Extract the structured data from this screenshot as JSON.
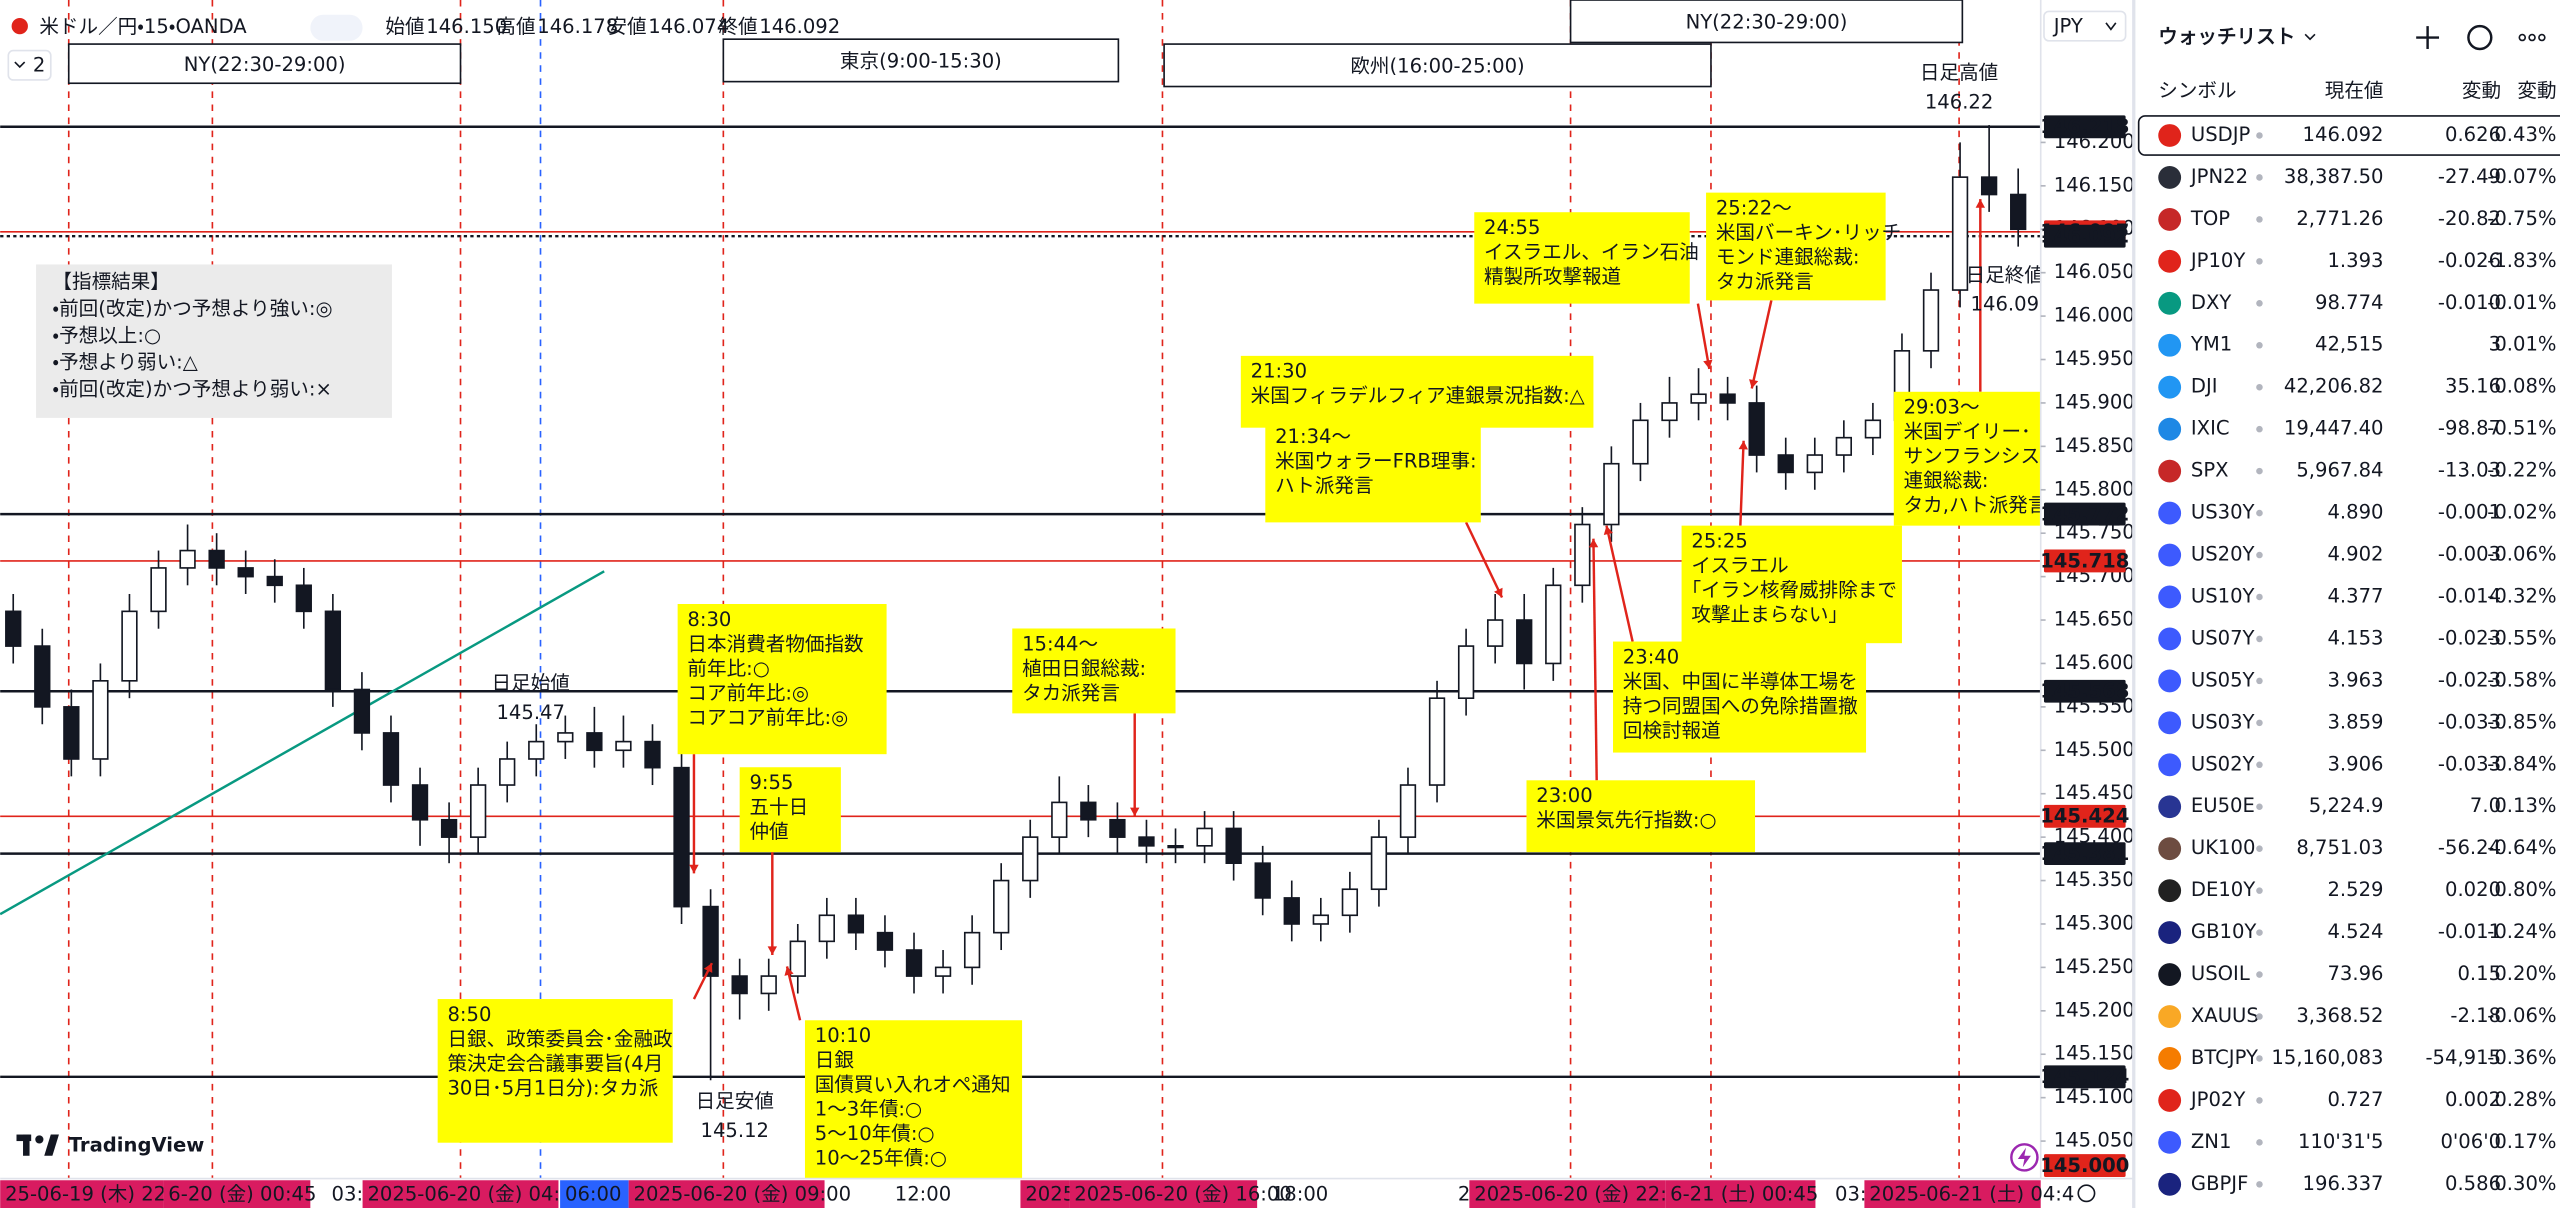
{
  "header": {
    "layout_count": "2",
    "symbol": "米ドル／円・15・OANDA",
    "ohlc": [
      {
        "label": "始値",
        "value": "146.150"
      },
      {
        "label": "高値",
        "value": "146.178"
      },
      {
        "label": "安値",
        "value": "146.074"
      },
      {
        "label": "終値",
        "value": "146.092"
      }
    ]
  },
  "sessions": [
    "NY(22:30-29:00)",
    "東京(9:00-15:30)",
    "欧州(16:00-25:00)",
    "NY(22:30-29:00)"
  ],
  "legend_box": {
    "lines": [
      "【指標結果】",
      "・前回(改定)かつ予想より強い:◎",
      "・予想以上:○",
      "・予想より弱い:△",
      "・前回(改定)かつ予想より弱い:×"
    ]
  },
  "annotations": [
    {
      "color": "#111111",
      "lines": [
        "8:30",
        "日本消費者物価指数",
        "前年比:○",
        "コア前年比:◎",
        "コアコア前年比:◎"
      ]
    },
    {
      "color": "#111111",
      "lines": [
        "9:55",
        "五十日",
        "仲値"
      ]
    },
    {
      "color": "#111111",
      "lines": [
        "8:50",
        "日銀、政策委員会･金融政",
        "策決定会合議事要旨(4月",
        "30日･5月1日分):タカ派"
      ]
    },
    {
      "color": "#111111",
      "lines": [
        "10:10",
        "日銀",
        "国債買い入れオペ通知",
        "1～3年債:○",
        "5～10年債:○",
        "10～25年債:○"
      ]
    },
    {
      "color": "#e0241b",
      "lines": [
        "15:44～",
        "植田日銀総裁:",
        "タカ派発言"
      ]
    },
    {
      "color": "#111111",
      "lines": [
        "21:30",
        "米国フィラデルフィア連銀景況指数:△"
      ]
    },
    {
      "color": "#e0241b",
      "lines": [
        "21:34～",
        "米国ウォラーFRB理事:",
        "ハト派発言"
      ]
    },
    {
      "color": "#e0241b",
      "lines": [
        "24:55",
        "イスラエル、イラン石油",
        "精製所攻撃報道"
      ]
    },
    {
      "color": "#111111",
      "lines": [
        "25:22～",
        "米国バーキン･リッチ",
        "モンド連銀総裁:",
        "タカ派発言"
      ]
    },
    {
      "color": "#111111",
      "lines": [
        "29:03～",
        "米国デイリー･",
        "サンフランシスコ",
        "連銀総裁:",
        "タカ,ハト派発言"
      ]
    },
    {
      "color": "#e0241b",
      "lines": [
        "25:25",
        "イスラエル",
        "｢イラン核脅威排除まで",
        "攻撃止まらない｣"
      ]
    },
    {
      "color": "#e0241b",
      "lines": [
        "23:40",
        "米国、中国に半導体工場を",
        "持つ同盟国への免除措置撤",
        "回検討報道"
      ]
    },
    {
      "color": "#111111",
      "lines": [
        "23:00",
        "米国景気先行指数:○"
      ]
    }
  ],
  "daily_marks": [
    {
      "label": "日足高値",
      "price": "146.22"
    },
    {
      "label": "日足終値",
      "price": "146.09"
    },
    {
      "label": "日足始値",
      "price": "145.47"
    },
    {
      "label": "日足安値",
      "price": "145.12"
    }
  ],
  "chart_data": {
    "type": "candlestick",
    "currency": "JPY",
    "up_color": "#ffffff",
    "down_color": "#131722",
    "open": [
      145.66,
      145.62,
      145.55,
      145.49,
      145.58,
      145.66,
      145.71,
      145.73,
      145.71,
      145.7,
      145.69,
      145.66,
      145.57,
      145.52,
      145.46,
      145.42,
      145.4,
      145.46,
      145.49,
      145.51,
      145.52,
      145.5,
      145.51,
      145.48,
      145.32,
      145.24,
      145.22,
      145.24,
      145.28,
      145.31,
      145.29,
      145.27,
      145.24,
      145.25,
      145.29,
      145.35,
      145.4,
      145.44,
      145.42,
      145.4,
      145.39,
      145.39,
      145.41,
      145.37,
      145.33,
      145.3,
      145.31,
      145.34,
      145.4,
      145.46,
      145.56,
      145.62,
      145.65,
      145.6,
      145.69,
      145.76,
      145.83,
      145.88,
      145.9,
      145.91,
      145.9,
      145.84,
      145.82,
      145.84,
      145.86,
      145.88,
      145.96,
      146.03,
      146.16,
      146.14
    ],
    "high": [
      145.68,
      145.64,
      145.57,
      145.6,
      145.68,
      145.73,
      145.76,
      145.75,
      145.73,
      145.72,
      145.71,
      145.68,
      145.59,
      145.54,
      145.48,
      145.44,
      145.48,
      145.51,
      145.53,
      145.54,
      145.55,
      145.54,
      145.53,
      145.5,
      145.34,
      145.26,
      145.26,
      145.3,
      145.33,
      145.33,
      145.31,
      145.29,
      145.27,
      145.31,
      145.37,
      145.42,
      145.47,
      145.46,
      145.44,
      145.42,
      145.41,
      145.43,
      145.43,
      145.39,
      145.35,
      145.33,
      145.36,
      145.42,
      145.48,
      145.58,
      145.64,
      145.68,
      145.68,
      145.71,
      145.78,
      145.85,
      145.9,
      145.93,
      145.94,
      145.93,
      145.92,
      145.86,
      145.86,
      145.88,
      145.9,
      145.98,
      146.05,
      146.2,
      146.22,
      146.17
    ],
    "low": [
      145.6,
      145.53,
      145.47,
      145.47,
      145.56,
      145.64,
      145.69,
      145.69,
      145.68,
      145.67,
      145.64,
      145.55,
      145.5,
      145.44,
      145.39,
      145.37,
      145.38,
      145.44,
      145.47,
      145.49,
      145.48,
      145.48,
      145.46,
      145.3,
      145.12,
      145.19,
      145.2,
      145.22,
      145.26,
      145.27,
      145.25,
      145.22,
      145.22,
      145.23,
      145.27,
      145.33,
      145.38,
      145.4,
      145.38,
      145.37,
      145.37,
      145.37,
      145.35,
      145.31,
      145.28,
      145.28,
      145.29,
      145.32,
      145.38,
      145.44,
      145.54,
      145.6,
      145.57,
      145.58,
      145.67,
      145.74,
      145.81,
      145.86,
      145.88,
      145.88,
      145.82,
      145.8,
      145.8,
      145.82,
      145.84,
      145.86,
      145.94,
      146.01,
      146.12,
      146.08
    ],
    "close": [
      145.62,
      145.55,
      145.49,
      145.58,
      145.66,
      145.71,
      145.73,
      145.71,
      145.7,
      145.69,
      145.66,
      145.57,
      145.52,
      145.46,
      145.42,
      145.4,
      145.46,
      145.49,
      145.51,
      145.52,
      145.5,
      145.51,
      145.48,
      145.32,
      145.24,
      145.22,
      145.24,
      145.28,
      145.31,
      145.29,
      145.27,
      145.24,
      145.25,
      145.29,
      145.35,
      145.4,
      145.44,
      145.42,
      145.4,
      145.39,
      145.39,
      145.41,
      145.37,
      145.33,
      145.3,
      145.31,
      145.34,
      145.4,
      145.46,
      145.56,
      145.62,
      145.65,
      145.6,
      145.69,
      145.76,
      145.83,
      145.88,
      145.9,
      145.91,
      145.9,
      145.84,
      145.82,
      145.84,
      145.86,
      145.88,
      145.96,
      146.03,
      146.16,
      146.14,
      146.1
    ],
    "ylim": [
      145.0,
      146.364
    ],
    "yticks": [
      {
        "value": 145.05,
        "label": "145.050"
      },
      {
        "value": 145.1,
        "label": "145.100"
      },
      {
        "value": 145.15,
        "label": "145.150"
      },
      {
        "value": 145.2,
        "label": "145.200"
      },
      {
        "value": 145.25,
        "label": "145.250"
      },
      {
        "value": 145.3,
        "label": "145.300"
      },
      {
        "value": 145.35,
        "label": "145.350"
      },
      {
        "value": 145.4,
        "label": "145.400"
      },
      {
        "value": 145.45,
        "label": "145.450"
      },
      {
        "value": 145.5,
        "label": "145.500"
      },
      {
        "value": 145.55,
        "label": "145.550"
      },
      {
        "value": 145.6,
        "label": "145.600"
      },
      {
        "value": 145.65,
        "label": "145.650"
      },
      {
        "value": 145.7,
        "label": "145.700"
      },
      {
        "value": 145.75,
        "label": "145.750"
      },
      {
        "value": 145.8,
        "label": "145.800"
      },
      {
        "value": 145.85,
        "label": "145.850"
      },
      {
        "value": 145.9,
        "label": "145.900"
      },
      {
        "value": 145.95,
        "label": "145.950"
      },
      {
        "value": 146.0,
        "label": "146.000"
      },
      {
        "value": 146.05,
        "label": "146.050"
      },
      {
        "value": 146.1,
        "label": "146.100"
      },
      {
        "value": 146.15,
        "label": "146.150"
      },
      {
        "value": 146.2,
        "label": "146.200"
      }
    ],
    "price_lines": [
      {
        "value": 146.218,
        "color": "#131722"
      },
      {
        "value": 146.097,
        "color": "#e0241b"
      },
      {
        "value": 146.092,
        "color": "#131722"
      },
      {
        "value": 145.772,
        "color": "#131722"
      },
      {
        "value": 145.718,
        "color": "#e0241b"
      },
      {
        "value": 145.568,
        "color": "#131722"
      },
      {
        "value": 145.424,
        "color": "#e0241b"
      },
      {
        "value": 145.381,
        "color": "#131722"
      },
      {
        "value": 145.124,
        "color": "#131722"
      },
      {
        "value": 145.0,
        "label": "145.000",
        "color": "#e0241b"
      }
    ],
    "time_labels": [
      "25-06-19 (木)  22:30",
      "6-20 (金)  00:45",
      "03:0",
      "2025-06-20 (金)  04:45",
      "06:00",
      "2025-06-20 (金)  09:00",
      "12:00",
      "2025",
      "2025-06-20 (金)  16:00",
      "18:00",
      "21",
      "2025-06-20 (金)  22:30",
      "6-21 (土)  00:45",
      "03:0",
      "2025-06-21 (土)  04:4"
    ]
  },
  "brand": "TradingView",
  "watchlist": {
    "title": "ウォッチリスト",
    "columns": [
      "シンボル",
      "現在値",
      "変動",
      "変動"
    ],
    "rows": [
      [
        "USDJP",
        "146.092",
        "0.626",
        "0.43%"
      ],
      [
        "JPN22",
        "38,387.50",
        "-27.49",
        "-0.07%"
      ],
      [
        "TOP",
        "2,771.26",
        "-20.82",
        "-0.75%"
      ],
      [
        "JP10Y",
        "1.393",
        "-0.026",
        "-1.83%"
      ],
      [
        "DXY",
        "98.774",
        "-0.010",
        "-0.01%"
      ],
      [
        "YM1",
        "42,515",
        "3",
        "0.01%"
      ],
      [
        "DJI",
        "42,206.82",
        "35.16",
        "0.08%"
      ],
      [
        "IXIC",
        "19,447.40",
        "-98.87",
        "-0.51%"
      ],
      [
        "SPX",
        "5,967.84",
        "-13.03",
        "-0.22%"
      ],
      [
        "US30Y",
        "4.890",
        "-0.001",
        "-0.02%"
      ],
      [
        "US20Y",
        "4.902",
        "-0.003",
        "-0.06%"
      ],
      [
        "US10Y",
        "4.377",
        "-0.014",
        "-0.32%"
      ],
      [
        "US07Y",
        "4.153",
        "-0.023",
        "-0.55%"
      ],
      [
        "US05Y",
        "3.963",
        "-0.023",
        "-0.58%"
      ],
      [
        "US03Y",
        "3.859",
        "-0.033",
        "-0.85%"
      ],
      [
        "US02Y",
        "3.906",
        "-0.033",
        "-0.84%"
      ],
      [
        "EU50E",
        "5,224.9",
        "7.0",
        "0.13%"
      ],
      [
        "UK100",
        "8,751.03",
        "-56.24",
        "-0.64%"
      ],
      [
        "DE10Y",
        "2.529",
        "0.020",
        "0.80%"
      ],
      [
        "GB10Y",
        "4.524",
        "-0.011",
        "-0.24%"
      ],
      [
        "USOIL",
        "73.96",
        "0.15",
        "0.20%"
      ],
      [
        "XAUUS",
        "3,368.52",
        "-2.18",
        "-0.06%"
      ],
      [
        "BTCJPY",
        "15,160,083",
        "-54,915",
        "-0.36%"
      ],
      [
        "JP02Y",
        "0.727",
        "0.002",
        "0.28%"
      ],
      [
        "ZN1",
        "110'31'5",
        "0'06'0",
        "0.17%"
      ],
      [
        "GBPJF",
        "196.337",
        "0.586",
        "0.30%"
      ]
    ]
  }
}
